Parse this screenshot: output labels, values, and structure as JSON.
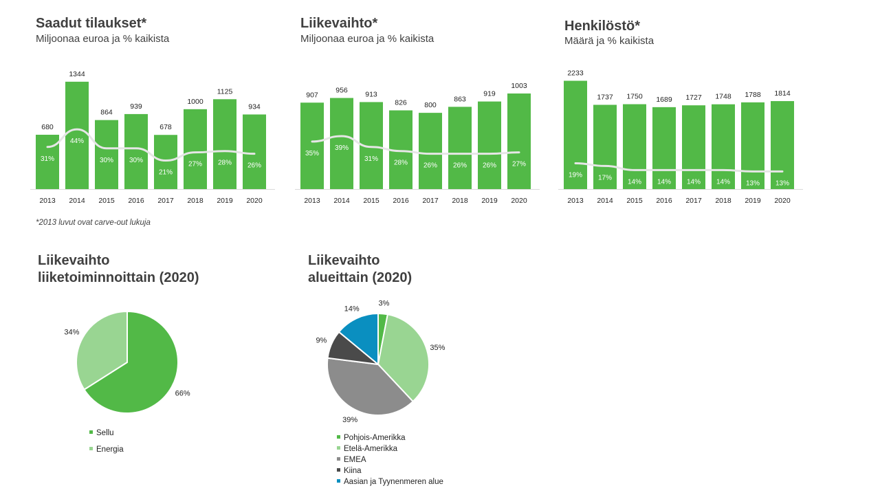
{
  "footnote": "*2013 luvut ovat carve-out lukuja",
  "colors": {
    "bar": "#52b947",
    "line": "#e6e6e6",
    "sellu": "#52b947",
    "energia": "#99d592",
    "pohjois_amerikka": "#52b947",
    "etela_amerikka": "#99d592",
    "emea": "#8c8c8c",
    "kiina": "#4a4a4a",
    "aasia": "#0a8fc0"
  },
  "chart_data": [
    {
      "type": "bar",
      "title": "Saadut tilaukset*",
      "subtitle": "Miljoonaa euroa ja % kaikista",
      "categories": [
        "2013",
        "2014",
        "2015",
        "2016",
        "2017",
        "2018",
        "2019",
        "2020"
      ],
      "values": [
        680,
        1344,
        864,
        939,
        678,
        1000,
        1125,
        934
      ],
      "value_labels": [
        "680",
        "1344",
        "864",
        "939",
        "678",
        "1000",
        "1125",
        "934"
      ],
      "ylim": [
        0,
        1360
      ],
      "line_series": {
        "values": [
          31,
          44,
          30,
          30,
          21,
          27,
          28,
          26
        ],
        "labels": [
          "31%",
          "44%",
          "30%",
          "30%",
          "21%",
          "27%",
          "28%",
          "26%"
        ],
        "ylim": [
          0,
          80
        ]
      }
    },
    {
      "type": "bar",
      "title": "Liikevaihto*",
      "subtitle": "Miljoonaa euroa ja % kaikista",
      "categories": [
        "2013",
        "2014",
        "2015",
        "2016",
        "2017",
        "2018",
        "2019",
        "2020"
      ],
      "values": [
        907,
        956,
        913,
        826,
        800,
        863,
        919,
        1003
      ],
      "value_labels": [
        "907",
        "956",
        "913",
        "826",
        "800",
        "863",
        "919",
        "1003"
      ],
      "ylim": [
        0,
        1140
      ],
      "line_series": {
        "values": [
          35,
          39,
          31,
          28,
          26,
          26,
          26,
          27
        ],
        "labels": [
          "35%",
          "39%",
          "31%",
          "28%",
          "26%",
          "26%",
          "26%",
          "27%"
        ],
        "ylim": [
          0,
          80
        ]
      }
    },
    {
      "type": "bar",
      "title": "Henkilöstö*",
      "subtitle": "Määrä ja % kaikista",
      "categories": [
        "2013",
        "2014",
        "2015",
        "2016",
        "2017",
        "2018",
        "2019",
        "2020"
      ],
      "values": [
        2233,
        1737,
        1750,
        1689,
        1727,
        1748,
        1788,
        1814
      ],
      "value_labels": [
        "2233",
        "1737",
        "1750",
        "1689",
        "1727",
        "1748",
        "1788",
        "1814"
      ],
      "ylim": [
        0,
        2240
      ],
      "line_series": {
        "values": [
          19,
          17,
          14,
          14,
          14,
          14,
          13,
          13
        ],
        "labels": [
          "19%",
          "17%",
          "14%",
          "14%",
          "14%",
          "14%",
          "13%",
          "13%"
        ],
        "ylim": [
          0,
          80
        ]
      }
    },
    {
      "type": "pie",
      "title_lines": [
        "Liikevaihto",
        "liiketoiminnoittain  (2020)"
      ],
      "slices": [
        {
          "label": "Sellu",
          "value": 66,
          "value_label": "66%",
          "color": "#52b947"
        },
        {
          "label": "Energia",
          "value": 34,
          "value_label": "34%",
          "color": "#99d592"
        }
      ]
    },
    {
      "type": "pie",
      "title_lines": [
        "Liikevaihto",
        "alueittain  (2020)"
      ],
      "slices": [
        {
          "label": "Pohjois-Amerikka",
          "value": 3,
          "value_label": "3%",
          "color": "#52b947"
        },
        {
          "label": "Etelä-Amerikka",
          "value": 35,
          "value_label": "35%",
          "color": "#99d592"
        },
        {
          "label": "EMEA",
          "value": 39,
          "value_label": "39%",
          "color": "#8c8c8c"
        },
        {
          "label": "Kiina",
          "value": 9,
          "value_label": "9%",
          "color": "#4a4a4a"
        },
        {
          "label": "Aasian ja Tyynenmeren alue",
          "value": 14,
          "value_label": "14%",
          "color": "#0a8fc0"
        }
      ]
    }
  ]
}
